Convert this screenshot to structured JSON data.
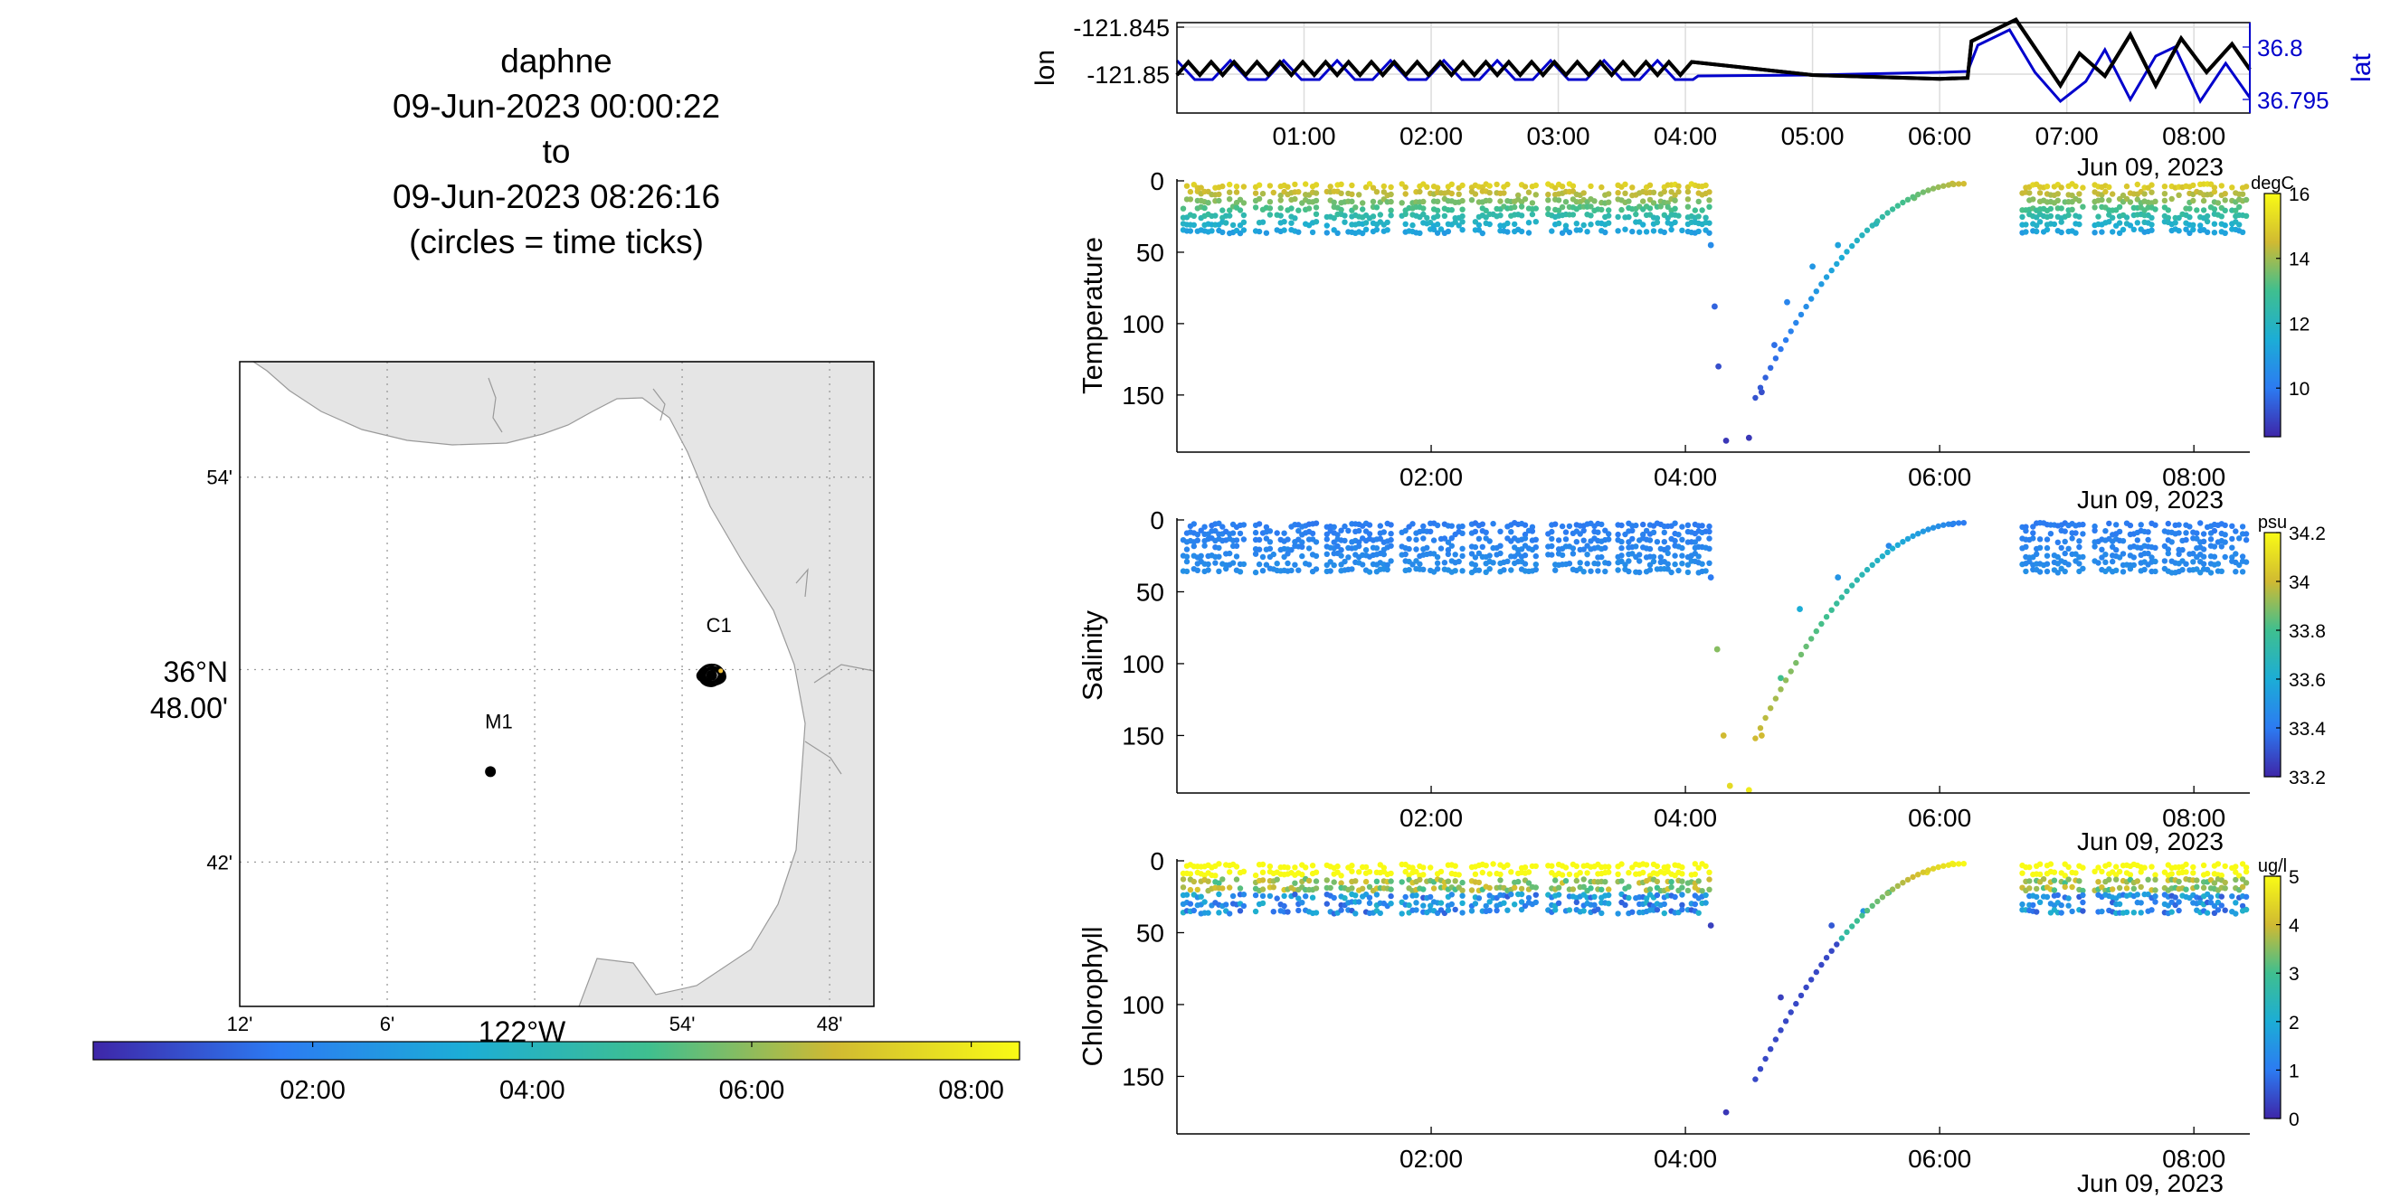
{
  "title": {
    "lines": [
      "daphne",
      "09-Jun-2023 00:00:22",
      "to",
      "09-Jun-2023 08:26:16",
      "(circles = time ticks)"
    ]
  },
  "map": {
    "lat_ticks": [
      {
        "label": "54'",
        "lat": 36.9
      },
      {
        "label": "42'",
        "lat": 36.7
      }
    ],
    "lat_main_label": [
      "36°N",
      "48.00'"
    ],
    "lon_ticks": [
      {
        "label": "12'",
        "lon": -122.2
      },
      {
        "label": "6'",
        "lon": -122.1
      },
      {
        "label": "54'",
        "lon": -121.9
      },
      {
        "label": "48'",
        "lon": -121.8
      }
    ],
    "lon_main_label": "122°W",
    "stations": [
      {
        "name": "M1",
        "lon": -122.03,
        "lat": 36.747
      },
      {
        "name": "C1",
        "lon": -121.88,
        "lat": 36.797
      }
    ],
    "time_colorbar_ticks": [
      "02:00",
      "04:00",
      "06:00",
      "08:00"
    ]
  },
  "position_panel": {
    "left_ylabel": "lon",
    "right_ylabel": "lat",
    "left_ticks": [
      "-121.845",
      "-121.85"
    ],
    "right_ticks": [
      "36.8",
      "36.795"
    ],
    "x_ticks": [
      "01:00",
      "02:00",
      "03:00",
      "04:00",
      "05:00",
      "06:00",
      "07:00",
      "08:00"
    ],
    "date_label": "Jun 09, 2023",
    "colors": {
      "lon": "#000000",
      "lat": "#0000cc"
    }
  },
  "chart_data": [
    {
      "type": "line",
      "title": "",
      "xlabel": "",
      "ylabel": "lon",
      "x_range_hours": [
        0.0,
        8.44
      ],
      "series": [
        {
          "name": "lon",
          "color": "#000000",
          "x": [
            0.0,
            0.5,
            1.0,
            2.0,
            3.0,
            4.0,
            4.1,
            5.0,
            6.0,
            6.22,
            6.25,
            6.6,
            6.75,
            6.95,
            7.1,
            7.3,
            7.5,
            7.7,
            7.9,
            8.1,
            8.3,
            8.44
          ],
          "y": [
            -121.8495,
            -121.8495,
            -121.8495,
            -121.8495,
            -121.8495,
            -121.8497,
            -121.8499,
            -121.8501,
            -121.8505,
            -121.8504,
            -121.8465,
            -121.8442,
            -121.8472,
            -121.8512,
            -121.8478,
            -121.8502,
            -121.8458,
            -121.8512,
            -121.8462,
            -121.8498,
            -121.8468,
            -121.8495
          ]
        }
      ]
    },
    {
      "type": "scatter",
      "title": "",
      "xlabel": "",
      "ylabel": "Temperature",
      "yticks": [
        0,
        50,
        100,
        150
      ],
      "colorbar": {
        "unit": "degC",
        "ticks": [
          10,
          12,
          14,
          16
        ],
        "range": [
          8.5,
          16
        ]
      },
      "profile_points": [
        {
          "x": 4.2,
          "depth": 45,
          "value": 10.5
        },
        {
          "x": 4.23,
          "depth": 88,
          "value": 9.6
        },
        {
          "x": 4.26,
          "depth": 130,
          "value": 9.2
        },
        {
          "x": 4.32,
          "depth": 182,
          "value": 8.8
        },
        {
          "x": 4.5,
          "depth": 180,
          "value": 8.8
        },
        {
          "x": 4.6,
          "depth": 148,
          "value": 9.2
        },
        {
          "x": 4.7,
          "depth": 115,
          "value": 9.8
        },
        {
          "x": 4.8,
          "depth": 85,
          "value": 10.3
        },
        {
          "x": 5.0,
          "depth": 60,
          "value": 10.8
        },
        {
          "x": 5.2,
          "depth": 45,
          "value": 11.2
        },
        {
          "x": 5.5,
          "depth": 30,
          "value": 12.0
        },
        {
          "x": 5.8,
          "depth": 12,
          "value": 13.5
        },
        {
          "x": 6.1,
          "depth": 2,
          "value": 14.5
        }
      ]
    },
    {
      "type": "scatter",
      "title": "",
      "xlabel": "",
      "ylabel": "Salinity",
      "yticks": [
        0,
        50,
        100,
        150
      ],
      "colorbar": {
        "unit": "psu",
        "ticks": [
          33.2,
          33.4,
          33.6,
          33.8,
          34,
          34.2
        ],
        "range": [
          33.2,
          34.2
        ]
      },
      "profile_points": [
        {
          "x": 4.2,
          "depth": 40,
          "value": 33.4
        },
        {
          "x": 4.25,
          "depth": 90,
          "value": 33.9
        },
        {
          "x": 4.3,
          "depth": 150,
          "value": 34.0
        },
        {
          "x": 4.35,
          "depth": 185,
          "value": 34.1
        },
        {
          "x": 4.5,
          "depth": 188,
          "value": 34.15
        },
        {
          "x": 4.6,
          "depth": 150,
          "value": 34.0
        },
        {
          "x": 4.75,
          "depth": 110,
          "value": 33.8
        },
        {
          "x": 4.9,
          "depth": 62,
          "value": 33.6
        },
        {
          "x": 5.2,
          "depth": 40,
          "value": 33.5
        },
        {
          "x": 5.6,
          "depth": 18,
          "value": 33.45
        },
        {
          "x": 6.1,
          "depth": 3,
          "value": 33.4
        }
      ]
    },
    {
      "type": "scatter",
      "title": "",
      "xlabel": "",
      "ylabel": "Chlorophyll",
      "yticks": [
        0,
        50,
        100,
        150
      ],
      "colorbar": {
        "unit": "ug/l",
        "ticks": [
          0,
          1,
          2,
          3,
          4,
          5
        ],
        "range": [
          0,
          5
        ]
      },
      "profile_points": [
        {
          "x": 4.2,
          "depth": 45,
          "value": 0.3
        },
        {
          "x": 4.32,
          "depth": 175,
          "value": 0.2
        },
        {
          "x": 4.75,
          "depth": 95,
          "value": 0.3
        },
        {
          "x": 5.15,
          "depth": 45,
          "value": 0.6
        },
        {
          "x": 5.4,
          "depth": 35,
          "value": 1.5
        },
        {
          "x": 5.6,
          "depth": 22,
          "value": 3.0
        },
        {
          "x": 5.9,
          "depth": 8,
          "value": 4.5
        },
        {
          "x": 6.1,
          "depth": 2,
          "value": 5.0
        }
      ]
    }
  ],
  "profile_panels": {
    "x_ticks": [
      "02:00",
      "04:00",
      "06:00",
      "08:00"
    ],
    "date_labels": [
      "Jun 09, 2023",
      "Jun 09, 2023",
      "Jun 09, 2023"
    ]
  }
}
